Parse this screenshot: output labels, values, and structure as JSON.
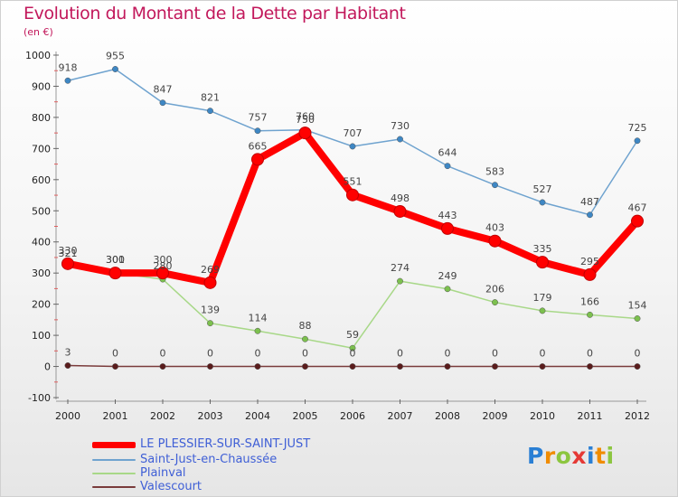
{
  "header": {
    "title": "Evolution du Montant de la Dette par Habitant",
    "subtitle": "(en €)"
  },
  "logo": {
    "text": "Proxiti",
    "letters": [
      "P",
      "r",
      "o",
      "x",
      "i",
      "t",
      "i"
    ],
    "colors": [
      "#2a7fd4",
      "#f08c00",
      "#8cc63f",
      "#e53935",
      "#2a7fd4",
      "#f08c00",
      "#8cc63f"
    ]
  },
  "chart_data": {
    "type": "line",
    "categories": [
      "2000",
      "2001",
      "2002",
      "2003",
      "2004",
      "2005",
      "2006",
      "2007",
      "2008",
      "2009",
      "2010",
      "2011",
      "2012"
    ],
    "ylim": [
      -100,
      1000
    ],
    "yticks": [
      -100,
      0,
      100,
      200,
      300,
      400,
      500,
      600,
      700,
      800,
      900,
      1000
    ],
    "grid": false,
    "legend_position": "bottom-left",
    "series": [
      {
        "name": "Saint-Just-en-Chaussée",
        "color": "#6fa3cf",
        "marker": "#3e87c4",
        "values": [
          918,
          955,
          847,
          821,
          757,
          760,
          707,
          730,
          644,
          583,
          527,
          487,
          725
        ]
      },
      {
        "name": "Plainval",
        "color": "#a8d888",
        "marker": "#7cc04e",
        "values": [
          321,
          301,
          280,
          139,
          114,
          88,
          59,
          274,
          249,
          206,
          179,
          166,
          154
        ]
      },
      {
        "name": "Valescourt",
        "color": "#7a3b3b",
        "marker": "#5a1c1c",
        "values": [
          3,
          0,
          0,
          0,
          0,
          0,
          0,
          0,
          0,
          0,
          0,
          0,
          0
        ]
      },
      {
        "name": "LE PLESSIER-SUR-SAINT-JUST",
        "color": "#ff0000",
        "marker": "#ff0000",
        "values": [
          330,
          300,
          300,
          269,
          665,
          750,
          551,
          498,
          443,
          403,
          335,
          295,
          467
        ]
      }
    ]
  }
}
